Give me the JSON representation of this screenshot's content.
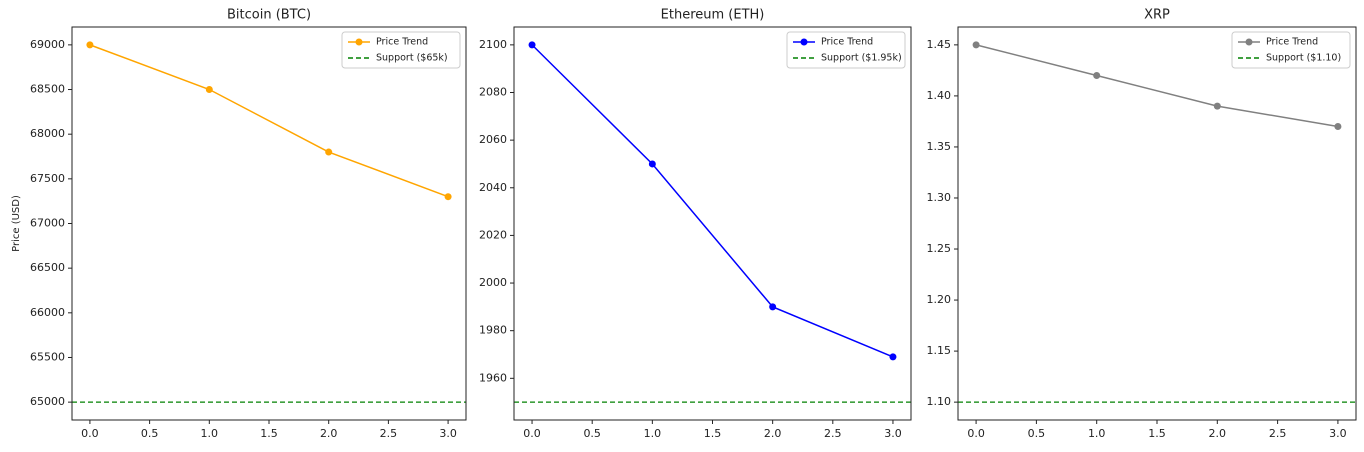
{
  "chart_data": [
    {
      "type": "line",
      "title": "Bitcoin (BTC)",
      "ylabel": "Price (USD)",
      "x": [
        0,
        1,
        2,
        3
      ],
      "series": [
        {
          "name": "Price Trend",
          "color": "#ffa500",
          "values": [
            69000,
            68500,
            67800,
            67300
          ]
        }
      ],
      "hlines": [
        {
          "name": "Support ($65k)",
          "value": 65000,
          "color": "#008000",
          "style": "dashed"
        }
      ],
      "xlim": [
        -0.15,
        3.15
      ],
      "xticks": [
        {
          "value": 0,
          "label": "0.0"
        },
        0.5,
        {
          "value": 1,
          "label": "1.0"
        },
        1.5,
        {
          "value": 2,
          "label": "2.0"
        },
        2.5,
        {
          "value": 3,
          "label": "3.0"
        }
      ],
      "ylim": [
        64800,
        69200
      ],
      "yticks": [
        65000,
        65500,
        66000,
        66500,
        67000,
        67500,
        68000,
        68500,
        69000
      ],
      "legend": "upper right"
    },
    {
      "type": "line",
      "title": "Ethereum (ETH)",
      "x": [
        0,
        1,
        2,
        3
      ],
      "series": [
        {
          "name": "Price Trend",
          "color": "#0000ff",
          "values": [
            2100,
            2050,
            1990,
            1969
          ]
        }
      ],
      "hlines": [
        {
          "name": "Support ($1.95k)",
          "value": 1950,
          "color": "#008000",
          "style": "dashed"
        }
      ],
      "xlim": [
        -0.15,
        3.15
      ],
      "xticks": [
        {
          "value": 0,
          "label": "0.0"
        },
        0.5,
        {
          "value": 1,
          "label": "1.0"
        },
        1.5,
        {
          "value": 2,
          "label": "2.0"
        },
        2.5,
        {
          "value": 3,
          "label": "3.0"
        }
      ],
      "ylim": [
        1942.5,
        2107.5
      ],
      "yticks": [
        1960,
        1980,
        2000,
        2020,
        2040,
        2060,
        2080,
        2100
      ],
      "legend": "upper right"
    },
    {
      "type": "line",
      "title": "XRP",
      "x": [
        0,
        1,
        2,
        3
      ],
      "series": [
        {
          "name": "Price Trend",
          "color": "#808080",
          "values": [
            1.45,
            1.42,
            1.39,
            1.37
          ]
        }
      ],
      "hlines": [
        {
          "name": "Support ($1.10)",
          "value": 1.1,
          "color": "#008000",
          "style": "dashed"
        }
      ],
      "xlim": [
        -0.15,
        3.15
      ],
      "xticks": [
        {
          "value": 0,
          "label": "0.0"
        },
        0.5,
        {
          "value": 1,
          "label": "1.0"
        },
        1.5,
        {
          "value": 2,
          "label": "2.0"
        },
        2.5,
        {
          "value": 3,
          "label": "3.0"
        }
      ],
      "ylim": [
        1.0825,
        1.4675
      ],
      "yticks": [
        {
          "value": 1.1,
          "label": "1.10"
        },
        1.15,
        {
          "value": 1.2,
          "label": "1.20"
        },
        1.25,
        {
          "value": 1.3,
          "label": "1.30"
        },
        1.35,
        {
          "value": 1.4,
          "label": "1.40"
        },
        1.45
      ],
      "legend": "upper right"
    }
  ]
}
